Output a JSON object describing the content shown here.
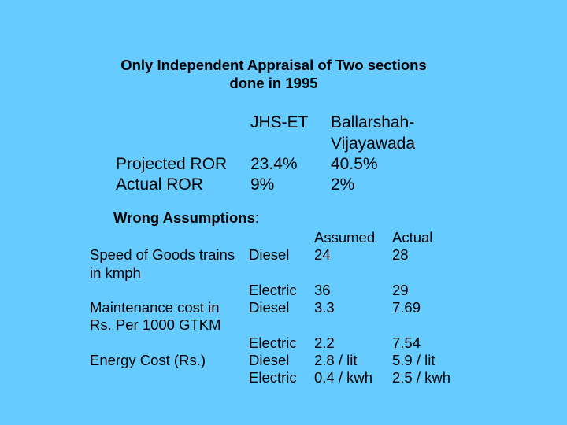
{
  "title": {
    "line1": "Only Independent Appraisal of Two sections",
    "line2": "done in 1995"
  },
  "ror_table": {
    "col1_header": "JHS-ET",
    "col2_header_line1": "Ballarshah-",
    "col2_header_line2": "Vijayawada",
    "rows": [
      {
        "label": "Projected ROR",
        "jhs_et": "23.4%",
        "ballarshah": "40.5%"
      },
      {
        "label": "Actual ROR",
        "jhs_et": "9%",
        "ballarshah": "2%"
      }
    ]
  },
  "wrong_assumptions": {
    "heading": "Wrong Assumptions",
    "heading_suffix": ":",
    "col_assumed": "Assumed",
    "col_actual": "Actual",
    "rows": [
      {
        "param_line1": "Speed of Goods trains",
        "param_line2": "in kmph",
        "mode": "Diesel",
        "assumed": "24",
        "actual": "28"
      },
      {
        "mode": "Electric",
        "assumed": "36",
        "actual": "29"
      },
      {
        "param_line1": "Maintenance cost in",
        "param_line2": "Rs. Per 1000 GTKM",
        "mode": "Diesel",
        "assumed": "3.3",
        "actual": "7.69"
      },
      {
        "mode": "Electric",
        "assumed": "2.2",
        "actual": "7.54"
      },
      {
        "param_line1": "Energy Cost (Rs.)",
        "mode": "Diesel",
        "assumed": "2.8 / lit",
        "actual": "5.9 / lit"
      },
      {
        "mode": "Electric",
        "assumed": "0.4 / kwh",
        "actual": "2.5 / kwh"
      }
    ]
  }
}
